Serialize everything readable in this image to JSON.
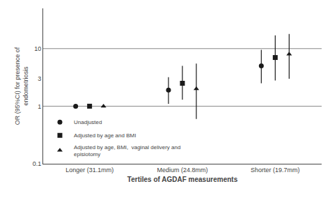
{
  "chart_data": {
    "type": "scatter",
    "xlabel": "Tertiles of AGDAF measurements",
    "ylabel": "OR (95%CI) for presence of\nendometriosis",
    "categories": [
      "Longer (31.1mm)",
      "Medium (24.8mm)",
      "Shorter (19.7mm)"
    ],
    "series": [
      {
        "name": "Unadjusted",
        "marker": "circle",
        "values": [
          1.0,
          1.9,
          5.0
        ],
        "ci_low": [
          1.0,
          1.1,
          2.5
        ],
        "ci_high": [
          1.0,
          3.2,
          9.5
        ]
      },
      {
        "name": "Adjusted by age and BMI",
        "marker": "square",
        "values": [
          1.0,
          2.5,
          7.0
        ],
        "ci_low": [
          1.0,
          1.3,
          2.8
        ],
        "ci_high": [
          1.0,
          5.0,
          17.0
        ]
      },
      {
        "name": "Adjusted by age, BMI,  vaginal delivery and\nepisiotomy",
        "marker": "triangle-up",
        "values": [
          1.0,
          2.0,
          8.0
        ],
        "ci_low": [
          1.0,
          0.6,
          3.0
        ],
        "ci_high": [
          1.0,
          5.5,
          18.0
        ]
      }
    ],
    "color": "#1a1a1a",
    "log": "y",
    "ylim": [
      0.1,
      50
    ],
    "yticks": [
      0.1,
      1,
      3,
      10
    ],
    "hlines": [
      {
        "value": 1.0,
        "color": "#888888"
      },
      {
        "value": 10.0,
        "color": "#888888"
      }
    ],
    "grid": false,
    "legend": "lower left"
  }
}
